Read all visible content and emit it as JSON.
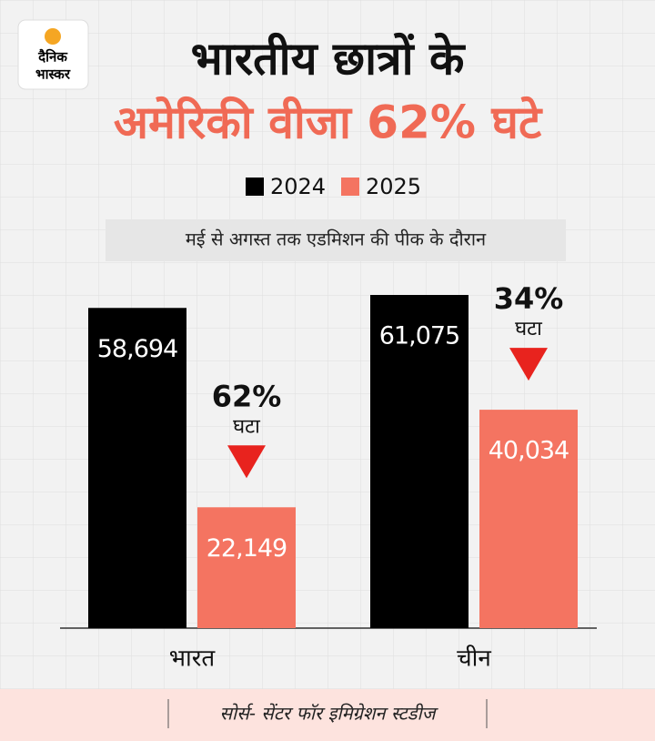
{
  "logo": {
    "line1": "दैनिक",
    "line2": "भास्कर"
  },
  "chart_data": {
    "type": "bar",
    "title": "भारतीय छात्रों के",
    "subtitle": "अमेरिकी वीजा 62% घटे",
    "note": "मई से अगस्त तक एडमिशन की पीक के दौरान",
    "categories": [
      "भारत",
      "चीन"
    ],
    "series": [
      {
        "name": "2024",
        "color": "#000000",
        "values": [
          58694,
          61075
        ],
        "value_labels": [
          "58,694",
          "61,075"
        ]
      },
      {
        "name": "2025",
        "color": "#f47461",
        "values": [
          22149,
          40034
        ],
        "value_labels": [
          "22,149",
          "40,034"
        ]
      }
    ],
    "annotations": [
      {
        "label": "62%",
        "text": "घटा"
      },
      {
        "label": "34%",
        "text": "घटा"
      }
    ],
    "annotation_color": "#e8231e",
    "source": "सोर्स-  सेंटर फॉर इमिग्रेशन स्टडीज"
  }
}
